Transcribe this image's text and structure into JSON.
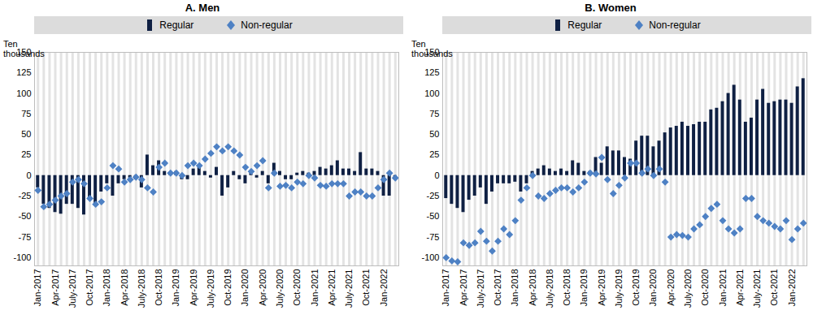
{
  "chart_data": [
    {
      "type": "bar",
      "title": "A. Men",
      "y_label": "Ten thousands",
      "categories": [
        "Jan-2017",
        null,
        null,
        "Apr-2017",
        null,
        null,
        "July-2017",
        null,
        null,
        "Oct-2017",
        null,
        null,
        "Jan-2018",
        null,
        null,
        "Apr-2018",
        null,
        null,
        "July-2018",
        null,
        null,
        "Oct-2018",
        null,
        null,
        "Jan-2019",
        null,
        null,
        "Apr-2019",
        null,
        null,
        "July-2019",
        null,
        null,
        "Oct-2019",
        null,
        null,
        "Jan-2020",
        null,
        null,
        "Apr-2020",
        null,
        null,
        "July-2020",
        null,
        null,
        "Oct-2020",
        null,
        null,
        "Jan-2021",
        null,
        null,
        "Apr-2021",
        null,
        null,
        "July-2021",
        null,
        null,
        "Oct-2021",
        null,
        null,
        "Jan-2022",
        null,
        null
      ],
      "series": [
        {
          "name": "Regular",
          "type": "bar",
          "color": "#0f2043",
          "values": [
            -15,
            -35,
            -40,
            -45,
            -47,
            -35,
            -35,
            -40,
            -48,
            -30,
            -35,
            -20,
            -10,
            -25,
            -10,
            -5,
            -3,
            -5,
            -15,
            25,
            12,
            18,
            5,
            3,
            5,
            -5,
            -5,
            8,
            10,
            5,
            -3,
            10,
            -25,
            -15,
            5,
            -5,
            -10,
            5,
            -3,
            5,
            -10,
            15,
            5,
            -5,
            -5,
            3,
            5,
            3,
            5,
            10,
            8,
            12,
            18,
            8,
            8,
            5,
            28,
            8,
            8,
            5,
            -25,
            -25,
            -5
          ]
        },
        {
          "name": "Non-regular",
          "type": "scatter",
          "marker": "diamond",
          "color": "#4e81c4",
          "values": [
            -18,
            -38,
            -35,
            -30,
            -25,
            -22,
            -8,
            -5,
            -10,
            -28,
            -35,
            -32,
            -15,
            12,
            8,
            -8,
            -5,
            -2,
            -5,
            -15,
            -20,
            10,
            15,
            3,
            3,
            0,
            12,
            15,
            12,
            20,
            27,
            35,
            30,
            35,
            30,
            25,
            10,
            5,
            12,
            18,
            -15,
            3,
            -13,
            -12,
            -15,
            -8,
            -10,
            0,
            -3,
            -12,
            -13,
            -10,
            -10,
            -10,
            -25,
            -20,
            -20,
            -25,
            -25,
            -15,
            -5,
            3,
            -3
          ]
        }
      ],
      "ylim": [
        -110,
        150
      ],
      "yticks": [
        -100,
        -75,
        -50,
        -25,
        0,
        25,
        50,
        75,
        100,
        125,
        150
      ],
      "grid": true,
      "legend": "top"
    },
    {
      "type": "bar",
      "title": "B. Women",
      "y_label": "Ten thousands",
      "categories": [
        "Jan-2017",
        null,
        null,
        "Apr-2017",
        null,
        null,
        "July-2017",
        null,
        null,
        "Oct-2017",
        null,
        null,
        "Jan-2018",
        null,
        null,
        "Apr-2018",
        null,
        null,
        "July-2018",
        null,
        null,
        "Oct-2018",
        null,
        null,
        "Jan-2019",
        null,
        null,
        "Apr-2019",
        null,
        null,
        "July-2019",
        null,
        null,
        "Oct-2019",
        null,
        null,
        "Jan-2020",
        null,
        null,
        "Apr-2020",
        null,
        null,
        "July-2020",
        null,
        null,
        "Oct-2020",
        null,
        null,
        "Jan-2021",
        null,
        null,
        "Apr-2021",
        null,
        null,
        "July-2021",
        null,
        null,
        "Oct-2021",
        null,
        null,
        "Jan-2022",
        null,
        null
      ],
      "series": [
        {
          "name": "Regular",
          "type": "bar",
          "color": "#0f2043",
          "values": [
            -28,
            -35,
            -40,
            -45,
            -30,
            -25,
            -15,
            -35,
            -20,
            -10,
            -10,
            -10,
            -8,
            -20,
            -10,
            5,
            8,
            12,
            8,
            5,
            8,
            5,
            18,
            15,
            5,
            5,
            22,
            15,
            35,
            30,
            30,
            22,
            20,
            42,
            48,
            48,
            35,
            42,
            52,
            58,
            60,
            65,
            60,
            62,
            65,
            65,
            80,
            82,
            90,
            100,
            110,
            92,
            65,
            70,
            92,
            105,
            88,
            90,
            92,
            92,
            88,
            108,
            118
          ]
        },
        {
          "name": "Non-regular",
          "type": "scatter",
          "marker": "diamond",
          "color": "#4e81c4",
          "values": [
            -100,
            -104,
            -105,
            -82,
            -85,
            -82,
            -68,
            -80,
            -92,
            -80,
            -65,
            -72,
            -55,
            -30,
            -15,
            0,
            -25,
            -28,
            -22,
            -18,
            -15,
            -15,
            -20,
            -15,
            -8,
            3,
            2,
            22,
            -5,
            -22,
            -12,
            -3,
            15,
            15,
            3,
            8,
            0,
            8,
            -8,
            -75,
            -72,
            -73,
            -75,
            -65,
            -60,
            -50,
            -40,
            -35,
            -55,
            -65,
            -70,
            -65,
            -28,
            -28,
            -50,
            -55,
            -58,
            -62,
            -65,
            -55,
            -78,
            -65,
            -58
          ]
        }
      ],
      "ylim": [
        -110,
        150
      ],
      "yticks": [
        -100,
        -75,
        -50,
        -25,
        0,
        25,
        50,
        75,
        100,
        125,
        150
      ],
      "grid": true,
      "legend": "top"
    }
  ]
}
